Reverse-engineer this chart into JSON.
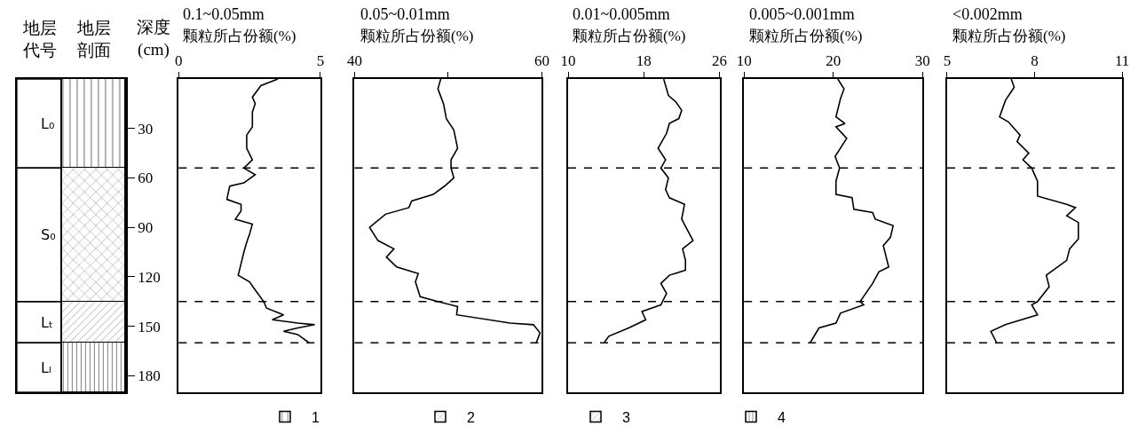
{
  "chart_data": [
    {
      "type": "bar",
      "stacked": true,
      "categories": [
        null
      ],
      "ylabel": "深度\n(cm)",
      "ylim": [
        190,
        0
      ],
      "yticks": [
        30,
        60,
        90,
        120,
        150,
        180
      ],
      "tick_labels": "y",
      "legend": "bottom",
      "annotations": [
        "地层代号",
        "地层剖面"
      ],
      "bands": [
        {
          "axis": "y",
          "from": 0,
          "to": 54,
          "label": "L₀"
        },
        {
          "axis": "y",
          "from": 54,
          "to": 135,
          "label": "S₀"
        },
        {
          "axis": "y",
          "from": 135,
          "to": 160,
          "label": "Lₜ"
        },
        {
          "axis": "y",
          "from": 160,
          "to": 190,
          "label": "Lₗ"
        }
      ],
      "series": [
        {
          "name": "1",
          "color": "#000000",
          "values": [
            54
          ]
        },
        {
          "name": "2",
          "color": "#000000",
          "values": [
            81
          ]
        },
        {
          "name": "3",
          "color": "#000000",
          "values": [
            25
          ]
        },
        {
          "name": "4",
          "color": "#000000",
          "values": [
            30
          ]
        }
      ]
    },
    {
      "type": "line",
      "orientation": "horizontal",
      "title": "0.1~0.05mm",
      "xlabel": "颗粒所占份额(%)",
      "xlim": [
        0,
        5
      ],
      "xticks": [
        0,
        5
      ],
      "ylim": [
        190,
        0
      ],
      "tick_labels": "x",
      "ref_lines": [
        {
          "axis": "y",
          "value": 54,
          "line_style": "dashed"
        },
        {
          "axis": "y",
          "value": 135,
          "line_style": "dashed"
        },
        {
          "axis": "y",
          "value": 160,
          "line_style": "dashed"
        }
      ],
      "x": [
        0,
        4,
        11,
        15,
        20,
        29,
        34,
        42,
        49,
        54,
        58,
        63,
        65,
        73,
        76,
        80,
        85,
        88,
        94,
        99,
        105,
        112,
        119,
        123,
        128,
        135,
        139,
        143,
        146,
        148,
        149,
        151,
        153,
        155,
        160
      ],
      "series": [
        {
          "color": "#000000",
          "values": [
            3.5,
            2.9,
            2.6,
            2.7,
            2.6,
            2.6,
            2.4,
            2.4,
            2.6,
            2.3,
            2.7,
            2.3,
            1.8,
            1.7,
            2.2,
            2.2,
            2.0,
            2.6,
            2.5,
            2.4,
            2.3,
            2.2,
            2.1,
            2.5,
            2.7,
            3.0,
            3.1,
            3.7,
            3.3,
            4.2,
            4.8,
            4.2,
            3.7,
            4.2,
            4.6
          ]
        }
      ]
    },
    {
      "type": "line",
      "orientation": "horizontal",
      "title": "0.05~0.01mm",
      "xlabel": "颗粒所占份额(%)",
      "xlim": [
        40,
        60
      ],
      "xticks": [
        40,
        {
          "value": 50,
          "label": null
        },
        60
      ],
      "ylim": [
        190,
        0
      ],
      "tick_labels": "x",
      "ref_lines": [
        {
          "axis": "y",
          "value": 54,
          "line_style": "dashed"
        },
        {
          "axis": "y",
          "value": 135,
          "line_style": "dashed"
        },
        {
          "axis": "y",
          "value": 160,
          "line_style": "dashed"
        }
      ],
      "x": [
        0,
        6,
        15,
        24,
        31,
        42,
        49,
        54,
        60,
        65,
        70,
        74,
        78,
        82,
        90,
        98,
        103,
        108,
        114,
        118,
        123,
        132,
        135,
        138,
        143,
        148,
        149,
        154,
        160
      ],
      "series": [
        {
          "color": "#000000",
          "values": [
            49.2,
            48.9,
            49.5,
            49.8,
            50.6,
            51.0,
            50.3,
            50.3,
            50.6,
            49.6,
            48.4,
            46.1,
            45.8,
            43.3,
            41.6,
            42.5,
            44.2,
            43.4,
            44.5,
            46.8,
            46.5,
            47.0,
            48.9,
            51.0,
            50.9,
            56.6,
            59.1,
            59.8,
            59.4
          ]
        }
      ]
    },
    {
      "type": "line",
      "orientation": "horizontal",
      "title": "0.01~0.005mm",
      "xlabel": "颗粒所占份额(%)",
      "xlim": [
        10,
        26
      ],
      "xticks": [
        10,
        18,
        26
      ],
      "ylim": [
        190,
        0
      ],
      "tick_labels": "x",
      "ref_lines": [
        {
          "axis": "y",
          "value": 54,
          "line_style": "dashed"
        },
        {
          "axis": "y",
          "value": 135,
          "line_style": "dashed"
        },
        {
          "axis": "y",
          "value": 160,
          "line_style": "dashed"
        }
      ],
      "x": [
        0,
        10,
        14,
        19,
        24,
        27,
        33,
        42,
        49,
        54,
        60,
        67,
        72,
        76,
        85,
        98,
        103,
        110,
        116,
        119,
        124,
        130,
        137,
        141,
        146,
        151,
        156,
        160
      ],
      "series": [
        {
          "color": "#000000",
          "values": [
            20.1,
            20.6,
            21.4,
            22.0,
            21.7,
            20.7,
            20.4,
            19.5,
            20.3,
            19.8,
            20.6,
            20.3,
            20.7,
            22.3,
            22.0,
            23.2,
            22.1,
            22.4,
            22.4,
            20.7,
            19.8,
            20.4,
            19.8,
            17.8,
            18.2,
            16.4,
            14.3,
            13.8
          ]
        }
      ]
    },
    {
      "type": "line",
      "orientation": "horizontal",
      "title": "0.005~0.001mm",
      "xlabel": "颗粒所占份额(%)",
      "xlim": [
        10,
        30
      ],
      "xticks": [
        10,
        20,
        30
      ],
      "ylim": [
        190,
        0
      ],
      "tick_labels": "x",
      "ref_lines": [
        {
          "axis": "y",
          "value": 54,
          "line_style": "dashed"
        },
        {
          "axis": "y",
          "value": 135,
          "line_style": "dashed"
        },
        {
          "axis": "y",
          "value": 160,
          "line_style": "dashed"
        }
      ],
      "x": [
        0,
        6,
        12,
        23,
        27,
        29,
        36,
        47,
        54,
        62,
        70,
        72,
        79,
        81,
        85,
        89,
        96,
        101,
        114,
        117,
        124,
        135,
        137,
        142,
        148,
        151,
        160
      ],
      "series": [
        {
          "color": "#000000",
          "values": [
            20.5,
            21.2,
            20.8,
            20.3,
            21.3,
            20.3,
            21.5,
            20.2,
            20.7,
            20.3,
            20.3,
            22.1,
            22.3,
            24.4,
            24.7,
            26.7,
            26.4,
            25.6,
            26.2,
            25.1,
            24.4,
            23.0,
            23.4,
            20.8,
            20.3,
            18.4,
            17.4
          ]
        }
      ]
    },
    {
      "type": "line",
      "orientation": "horizontal",
      "title": "<0.002mm",
      "xlabel": "颗粒所占份额(%)",
      "xlim": [
        5,
        11
      ],
      "xticks": [
        5,
        8,
        11
      ],
      "ylim": [
        190,
        0
      ],
      "tick_labels": "x",
      "ref_lines": [
        {
          "axis": "y",
          "value": 54,
          "line_style": "dashed"
        },
        {
          "axis": "y",
          "value": 135,
          "line_style": "dashed"
        },
        {
          "axis": "y",
          "value": 160,
          "line_style": "dashed"
        }
      ],
      "x": [
        0,
        5,
        13,
        23,
        26,
        34,
        38,
        45,
        49,
        54,
        62,
        71,
        76,
        78,
        83,
        87,
        97,
        103,
        110,
        119,
        126,
        135,
        137,
        143,
        149,
        153,
        160
      ],
      "series": [
        {
          "color": "#000000",
          "values": [
            7.2,
            7.3,
            7.0,
            6.8,
            7.1,
            7.5,
            7.4,
            7.8,
            7.6,
            7.9,
            8.1,
            8.1,
            9.1,
            9.4,
            9.1,
            9.5,
            9.5,
            9.2,
            9.1,
            8.4,
            8.5,
            8.1,
            7.9,
            8.1,
            7.0,
            6.5,
            6.7
          ]
        }
      ]
    }
  ]
}
